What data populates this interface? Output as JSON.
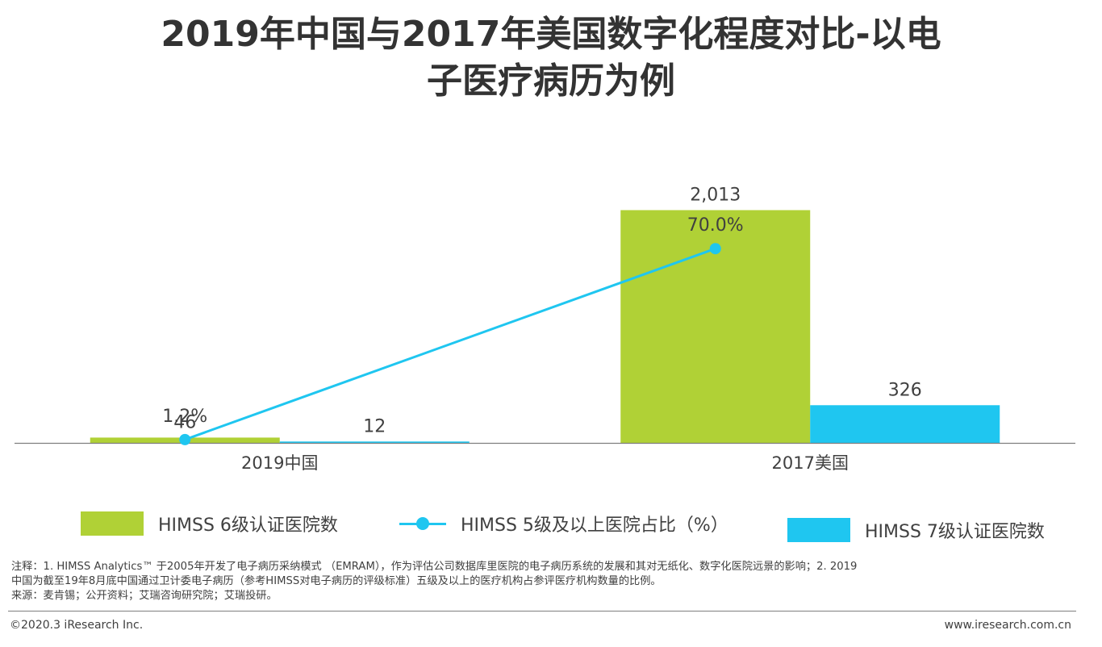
{
  "title_lines": [
    "2019年中国与2017年美国数字化程度对比-以电",
    "子医疗病历为例"
  ],
  "chart_data": {
    "type": "bar",
    "categories": [
      "2019中国",
      "2017美国"
    ],
    "series": [
      {
        "name": "HIMSS 6级认证医院数",
        "kind": "bar",
        "values": [
          46,
          2013
        ],
        "labels": [
          "46",
          "2,013"
        ],
        "color": "#b0d136"
      },
      {
        "name": "HIMSS 7级认证医院数",
        "kind": "bar",
        "values": [
          12,
          326
        ],
        "labels": [
          "12",
          "326"
        ],
        "color": "#1fc6f0"
      },
      {
        "name": "HIMSS 5级及以上医院占比（%）",
        "kind": "line",
        "values": [
          1.2,
          70.0
        ],
        "labels": [
          "1.2%",
          "70.0%"
        ],
        "color": "#1fc6f0"
      }
    ],
    "bar_axis_max": 2400,
    "line_axis_max": 100
  },
  "legend": [
    {
      "label": "HIMSS 6级认证医院数",
      "kind": "bar",
      "color": "#b0d136"
    },
    {
      "label": "HIMSS 5级及以上医院占比（%）",
      "kind": "line",
      "color": "#1fc6f0"
    },
    {
      "label": "HIMSS 7级认证医院数",
      "kind": "bar",
      "color": "#1fc6f0"
    }
  ],
  "notes": {
    "line1": "注释：1. HIMSS Analytics™ 于2005年开发了电子病历采纳模式 （EMRAM），作为评估公司数据库里医院的电子病历系统的发展和其对无纸化、数字化医院远景的影响；2. 2019",
    "line2": "中国为截至19年8月底中国通过卫计委电子病历（参考HIMSS对电子病历的评级标准）五级及以上的医疗机构占参评医疗机构数量的比例。",
    "line3": "来源：麦肯锡；公开资料；艾瑞咨询研究院；艾瑞投研。"
  },
  "footer": {
    "copyright": "©2020.3 iResearch Inc.",
    "website": "www.iresearch.com.cn"
  }
}
